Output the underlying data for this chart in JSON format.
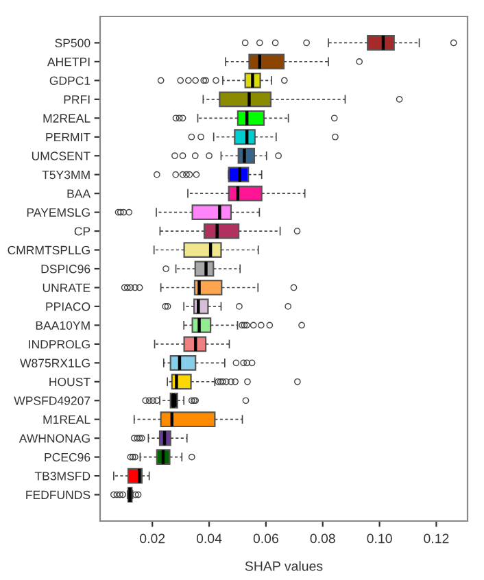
{
  "chart_data": {
    "type": "box",
    "orientation": "horizontal",
    "xlabel": "SHAP values",
    "xlim": [
      0.0016,
      0.131
    ],
    "xticks": [
      {
        "value": 0.02,
        "label": "0.02"
      },
      {
        "value": 0.04,
        "label": "0.04"
      },
      {
        "value": 0.06,
        "label": "0.06"
      },
      {
        "value": 0.08,
        "label": "0.08"
      },
      {
        "value": 0.1,
        "label": "0.10"
      },
      {
        "value": 0.12,
        "label": "0.12"
      }
    ],
    "grid": false,
    "legend": false,
    "categories": [
      "SP500",
      "AHETPI",
      "GDPC1",
      "PRFI",
      "M2REAL",
      "PERMIT",
      "UMCSENT",
      "T5Y3MM",
      "BAA",
      "PAYEMSLG",
      "CP",
      "CMRMTSPLLG",
      "DSPIC96",
      "UNRATE",
      "PPIACO",
      "BAA10YM",
      "INDPROLG",
      "W875RX1LG",
      "HOUST",
      "WPSFD49207",
      "M1REAL",
      "AWHNONAG",
      "PCEC96",
      "TB3MSFD",
      "FEDFUNDS"
    ],
    "colors": [
      "#a52a2a",
      "#8b4500",
      "#dcdc00",
      "#8b8b00",
      "#00ff00",
      "#00ced1",
      "#36648b",
      "#0000ff",
      "#ff1493",
      "#ff83fa",
      "#b03060",
      "#f0e68c",
      "#a9a9a9",
      "#ffa54f",
      "#d8bfd8",
      "#90ee90",
      "#f08080",
      "#87ceeb",
      "#ffd700",
      "#000000",
      "#ff8c00",
      "#6a3d9a",
      "#006400",
      "#ff0000",
      "#1c1c5c"
    ],
    "boxes": [
      {
        "low": 0.082,
        "q1": 0.0958,
        "median": 0.1013,
        "q3": 0.1051,
        "high": 0.114,
        "outliers": [
          0.0527,
          0.0578,
          0.0633,
          0.0743,
          0.1261
        ]
      },
      {
        "low": 0.0458,
        "q1": 0.0541,
        "median": 0.0578,
        "q3": 0.0663,
        "high": 0.082,
        "outliers": [
          0.0929
        ]
      },
      {
        "low": 0.0448,
        "q1": 0.0527,
        "median": 0.0553,
        "q3": 0.058,
        "high": 0.062,
        "outliers": [
          0.023,
          0.0299,
          0.0327,
          0.0352,
          0.0381,
          0.0388,
          0.0424,
          0.0665
        ]
      },
      {
        "low": 0.0379,
        "q1": 0.0437,
        "median": 0.0541,
        "q3": 0.0617,
        "high": 0.0879,
        "outliers": [
          0.107
        ]
      },
      {
        "low": 0.036,
        "q1": 0.0501,
        "median": 0.0533,
        "q3": 0.0593,
        "high": 0.0679,
        "outliers": [
          0.0283,
          0.0295,
          0.0307,
          0.0841
        ]
      },
      {
        "low": 0.0416,
        "q1": 0.049,
        "median": 0.0533,
        "q3": 0.0561,
        "high": 0.0636,
        "outliers": [
          0.0338,
          0.0371,
          0.0844
        ]
      },
      {
        "low": 0.0442,
        "q1": 0.0503,
        "median": 0.0524,
        "q3": 0.0559,
        "high": 0.0602,
        "outliers": [
          0.0279,
          0.0307,
          0.0351,
          0.04,
          0.0644
        ]
      },
      {
        "low": 0.0468,
        "q1": 0.0469,
        "median": 0.0508,
        "q3": 0.0538,
        "high": 0.0585,
        "outliers": [
          0.0216,
          0.0282,
          0.0307,
          0.032,
          0.0331,
          0.0355
        ]
      },
      {
        "low": 0.0325,
        "q1": 0.0469,
        "median": 0.0501,
        "q3": 0.0585,
        "high": 0.0737
      },
      {
        "low": 0.0214,
        "q1": 0.0341,
        "median": 0.0437,
        "q3": 0.0477,
        "high": 0.0577,
        "outliers": [
          0.008,
          0.0088,
          0.0099,
          0.0118
        ]
      },
      {
        "low": 0.0227,
        "q1": 0.0383,
        "median": 0.0428,
        "q3": 0.0504,
        "high": 0.065,
        "outliers": [
          0.071
        ]
      },
      {
        "low": 0.0206,
        "q1": 0.0312,
        "median": 0.0405,
        "q3": 0.0442,
        "high": 0.0573
      },
      {
        "low": 0.0283,
        "q1": 0.0351,
        "median": 0.0389,
        "q3": 0.0415,
        "high": 0.0509,
        "outliers": [
          0.0248
        ]
      },
      {
        "low": 0.023,
        "q1": 0.0349,
        "median": 0.0365,
        "q3": 0.0444,
        "high": 0.0572,
        "outliers": [
          0.0102,
          0.0112,
          0.0123,
          0.0139,
          0.0155,
          0.0698
        ]
      },
      {
        "low": 0.0311,
        "q1": 0.0347,
        "median": 0.0362,
        "q3": 0.0396,
        "high": 0.0442,
        "outliers": [
          0.0246,
          0.0254,
          0.0506,
          0.0678
        ]
      },
      {
        "low": 0.0311,
        "q1": 0.0341,
        "median": 0.0365,
        "q3": 0.0405,
        "high": 0.05,
        "outliers": [
          0.0516,
          0.0524,
          0.0532,
          0.0556,
          0.0583,
          0.0613,
          0.0726
        ]
      },
      {
        "low": 0.0208,
        "q1": 0.0312,
        "median": 0.0352,
        "q3": 0.0388,
        "high": 0.0471
      },
      {
        "low": 0.024,
        "q1": 0.0264,
        "median": 0.0296,
        "q3": 0.0352,
        "high": 0.0455,
        "outliers": [
          0.0495,
          0.0521,
          0.0533,
          0.0551
        ]
      },
      {
        "low": 0.0253,
        "q1": 0.0269,
        "median": 0.0285,
        "q3": 0.0336,
        "high": 0.042,
        "outliers": [
          0.0432,
          0.044,
          0.0448,
          0.046,
          0.0477,
          0.0492,
          0.0535,
          0.0711
        ]
      },
      {
        "low": 0.0226,
        "q1": 0.0264,
        "median": 0.0274,
        "q3": 0.0288,
        "high": 0.0311,
        "outliers": [
          0.0176,
          0.0189,
          0.0202,
          0.0216,
          0.0339,
          0.0347,
          0.0352,
          0.0529
        ]
      },
      {
        "low": 0.0136,
        "q1": 0.023,
        "median": 0.0269,
        "q3": 0.042,
        "high": 0.0517
      },
      {
        "low": 0.0186,
        "q1": 0.0226,
        "median": 0.0243,
        "q3": 0.0264,
        "high": 0.0322,
        "outliers": [
          0.0136,
          0.0147,
          0.0155,
          0.0163
        ]
      },
      {
        "low": 0.0157,
        "q1": 0.0216,
        "median": 0.0238,
        "q3": 0.0261,
        "high": 0.0304,
        "outliers": [
          0.0123,
          0.0131,
          0.0139,
          0.0339
        ]
      },
      {
        "low": 0.0064,
        "q1": 0.0115,
        "median": 0.0154,
        "q3": 0.0163,
        "high": 0.0189
      },
      {
        "low": 0.0112,
        "q1": 0.0115,
        "median": 0.0121,
        "q3": 0.0128,
        "high": 0.0131,
        "outliers": [
          0.0064,
          0.0075,
          0.0086,
          0.0096,
          0.0141,
          0.015
        ]
      }
    ]
  }
}
